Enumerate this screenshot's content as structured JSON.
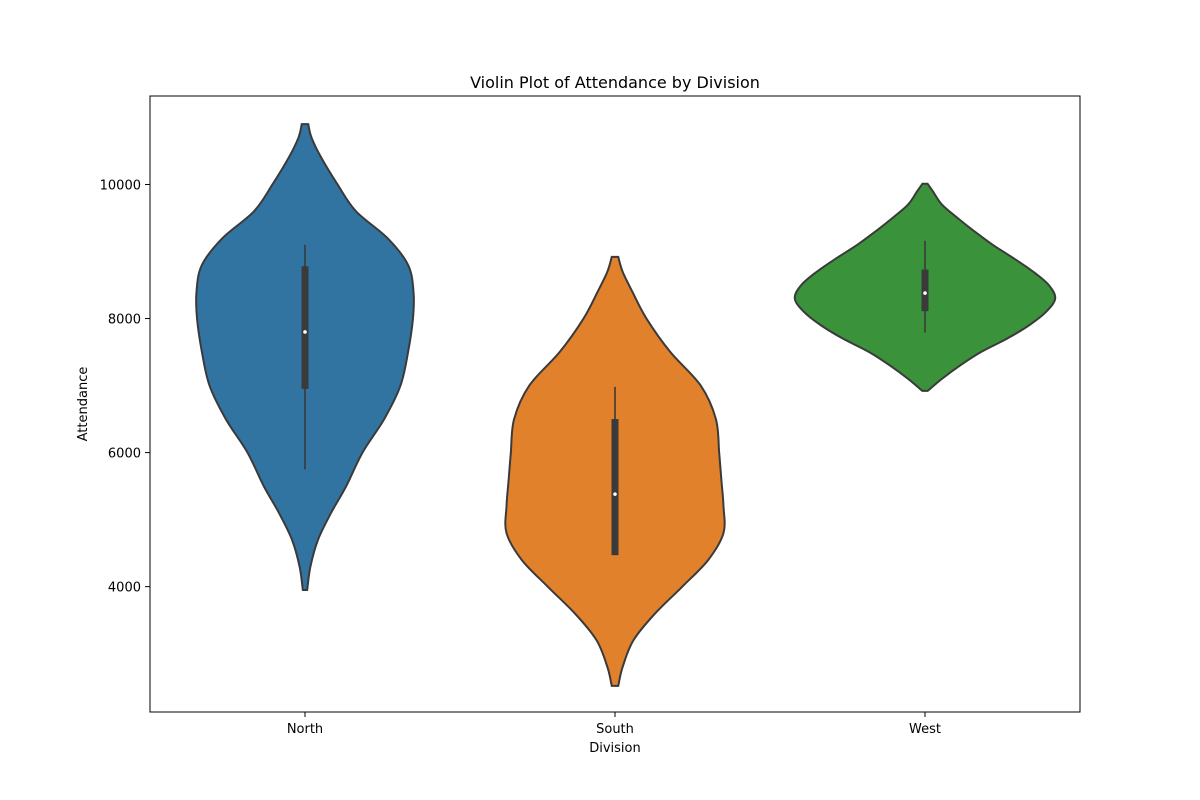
{
  "chart_data": {
    "type": "violin",
    "title": "Violin Plot of Attendance by Division",
    "xlabel": "Division",
    "ylabel": "Attendance",
    "ylim": [
      2130,
      11320
    ],
    "yticks": [
      4000,
      6000,
      8000,
      10000
    ],
    "grid": false,
    "categories": [
      "North",
      "South",
      "West"
    ],
    "violins": [
      {
        "category": "North",
        "color": "#3274a1",
        "min": 3950,
        "max": 10900,
        "whisker_low": 5750,
        "q1": 6950,
        "median": 7800,
        "q3": 8780,
        "whisker_high": 9100,
        "max_halfwidth": 700,
        "density": [
          [
            3950,
            0.02
          ],
          [
            4300,
            0.05
          ],
          [
            4700,
            0.12
          ],
          [
            5100,
            0.24
          ],
          [
            5500,
            0.38
          ],
          [
            6000,
            0.53
          ],
          [
            6500,
            0.73
          ],
          [
            7000,
            0.88
          ],
          [
            7500,
            0.95
          ],
          [
            8000,
            0.995
          ],
          [
            8400,
            1.0
          ],
          [
            8800,
            0.95
          ],
          [
            9200,
            0.76
          ],
          [
            9600,
            0.47
          ],
          [
            10000,
            0.3
          ],
          [
            10400,
            0.15
          ],
          [
            10700,
            0.06
          ],
          [
            10900,
            0.03
          ]
        ]
      },
      {
        "category": "South",
        "color": "#e1812c",
        "min": 2520,
        "max": 8920,
        "whisker_low": 4470,
        "q1": 4470,
        "median": 5380,
        "q3": 6500,
        "whisker_high": 6980,
        "max_halfwidth": 700,
        "density": [
          [
            2520,
            0.03
          ],
          [
            2800,
            0.07
          ],
          [
            3200,
            0.17
          ],
          [
            3600,
            0.37
          ],
          [
            4000,
            0.62
          ],
          [
            4400,
            0.86
          ],
          [
            4800,
            1.0
          ],
          [
            5200,
            1.0
          ],
          [
            5600,
            0.98
          ],
          [
            6000,
            0.96
          ],
          [
            6500,
            0.93
          ],
          [
            7000,
            0.79
          ],
          [
            7500,
            0.51
          ],
          [
            8000,
            0.29
          ],
          [
            8400,
            0.16
          ],
          [
            8700,
            0.07
          ],
          [
            8920,
            0.03
          ]
        ]
      },
      {
        "category": "West",
        "color": "#3a923a",
        "min": 6920,
        "max": 10010,
        "whisker_low": 7790,
        "q1": 8110,
        "median": 8380,
        "q3": 8730,
        "whisker_high": 9160,
        "max_halfwidth": 840,
        "density": [
          [
            6920,
            0.02
          ],
          [
            7100,
            0.13
          ],
          [
            7300,
            0.27
          ],
          [
            7500,
            0.43
          ],
          [
            7700,
            0.63
          ],
          [
            7900,
            0.8
          ],
          [
            8100,
            0.93
          ],
          [
            8300,
            1.0
          ],
          [
            8500,
            0.95
          ],
          [
            8700,
            0.83
          ],
          [
            8900,
            0.68
          ],
          [
            9100,
            0.52
          ],
          [
            9300,
            0.38
          ],
          [
            9500,
            0.25
          ],
          [
            9700,
            0.13
          ],
          [
            9900,
            0.06
          ],
          [
            10010,
            0.02
          ]
        ]
      }
    ]
  }
}
